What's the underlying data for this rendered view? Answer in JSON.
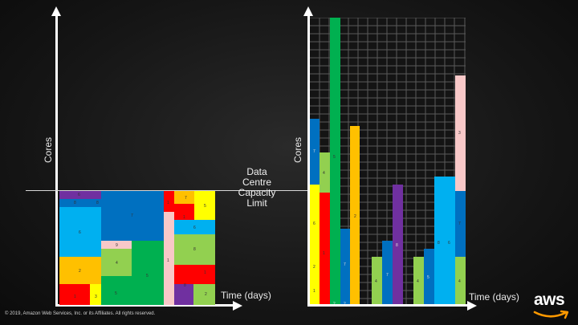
{
  "left_chart": {
    "y_label": "Cores",
    "x_label": "Time (days)",
    "capacity_label": "Data Centre Capacity Limit"
  },
  "right_chart": {
    "y_label": "Cores",
    "x_label": "Time (days)"
  },
  "footer": {
    "copyright": "© 2019, Amazon Web Services, Inc. or its Affiliates. All rights reserved.",
    "logo_text": "aws"
  },
  "colors": {
    "red": "#ff0000",
    "yellow": "#ffff00",
    "orange": "#ffc000",
    "green": "#00b050",
    "light_green": "#92d050",
    "blue": "#0070c0",
    "light_blue": "#00b0f0",
    "purple": "#7030a0",
    "pink": "#f8c8c8",
    "axis": "#ffffff"
  },
  "block_labels": [
    "6",
    "8",
    "8",
    "7",
    "1",
    "7",
    "5",
    "1",
    "6",
    "6",
    "9",
    "4",
    "2",
    "5",
    "8",
    "1",
    "1",
    "8",
    "2",
    "1",
    "3",
    "5",
    "4",
    "9"
  ],
  "bar_labels": [
    "3",
    "7",
    "5",
    "4",
    "2",
    "6",
    "7",
    "1",
    "8",
    "8",
    "6",
    "2",
    "7",
    "4",
    "7",
    "4",
    "5",
    "4",
    "2",
    "2",
    "1",
    "1"
  ]
}
